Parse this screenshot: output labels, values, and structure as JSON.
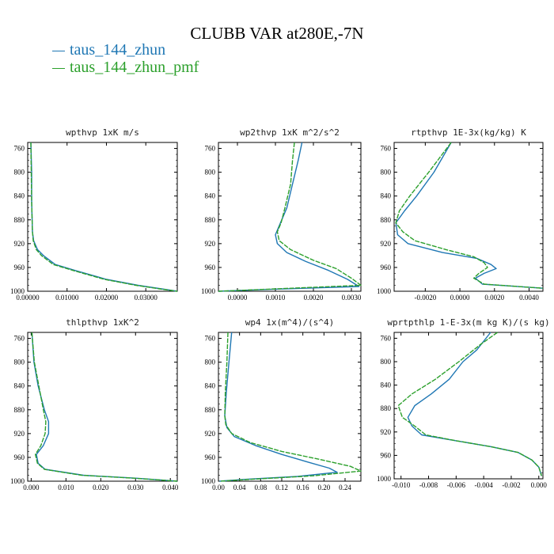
{
  "title": "CLUBB VAR at280E,-7N",
  "legend": [
    {
      "name": "taus_144_zhun",
      "color": "#1f77b4"
    },
    {
      "name": "taus_144_zhun_pmf",
      "color": "#2ca02c"
    }
  ],
  "chart_data": [
    {
      "type": "line",
      "title": "wpthvp  1xK m/s",
      "xlim": [
        0,
        0.038
      ],
      "ylim": [
        1000,
        750
      ],
      "xticks": [
        0,
        0.01,
        0.02,
        0.03
      ],
      "xtick_labels": [
        "0.00000",
        "0.01000",
        "0.02000",
        "0.03000"
      ],
      "yticks": [
        760,
        800,
        840,
        880,
        920,
        960,
        1000
      ],
      "series": [
        {
          "name": "taus_144_zhun",
          "points": [
            [
              0.0008,
              750
            ],
            [
              0.001,
              800
            ],
            [
              0.001,
              850
            ],
            [
              0.0012,
              900
            ],
            [
              0.0015,
              915
            ],
            [
              0.0025,
              930
            ],
            [
              0.004,
              940
            ],
            [
              0.007,
              955
            ],
            [
              0.012,
              965
            ],
            [
              0.02,
              980
            ],
            [
              0.028,
              990
            ],
            [
              0.034,
              996
            ],
            [
              0.038,
              1000
            ]
          ]
        },
        {
          "name": "taus_144_zhun_pmf",
          "points": [
            [
              0.0008,
              750
            ],
            [
              0.0009,
              800
            ],
            [
              0.001,
              850
            ],
            [
              0.0012,
              900
            ],
            [
              0.0014,
              915
            ],
            [
              0.0022,
              930
            ],
            [
              0.0035,
              940
            ],
            [
              0.0065,
              955
            ],
            [
              0.0115,
              965
            ],
            [
              0.0195,
              980
            ],
            [
              0.0275,
              990
            ],
            [
              0.0335,
              996
            ],
            [
              0.038,
              1000
            ]
          ]
        }
      ]
    },
    {
      "type": "line",
      "title": "wp2thvp  1xK m^2/s^2",
      "xlim": [
        -0.0005,
        0.00325
      ],
      "ylim": [
        1000,
        750
      ],
      "xticks": [
        0,
        0.001,
        0.002,
        0.003
      ],
      "xtick_labels": [
        "0.0000",
        "0.0010",
        "0.0020",
        "0.0030"
      ],
      "yticks": [
        760,
        800,
        840,
        880,
        920,
        960,
        1000
      ],
      "series": [
        {
          "name": "taus_144_zhun",
          "points": [
            [
              0.0017,
              750
            ],
            [
              0.0016,
              780
            ],
            [
              0.00145,
              820
            ],
            [
              0.0013,
              860
            ],
            [
              0.0011,
              890
            ],
            [
              0.001,
              905
            ],
            [
              0.00105,
              920
            ],
            [
              0.0013,
              935
            ],
            [
              0.0018,
              950
            ],
            [
              0.0024,
              965
            ],
            [
              0.0029,
              980
            ],
            [
              0.0032,
              992
            ],
            [
              0.0008,
              997
            ],
            [
              -0.0005,
              1000
            ]
          ]
        },
        {
          "name": "taus_144_zhun_pmf",
          "points": [
            [
              0.0015,
              750
            ],
            [
              0.00145,
              780
            ],
            [
              0.0014,
              820
            ],
            [
              0.00125,
              860
            ],
            [
              0.00115,
              885
            ],
            [
              0.00105,
              900
            ],
            [
              0.0011,
              915
            ],
            [
              0.0014,
              930
            ],
            [
              0.002,
              948
            ],
            [
              0.0026,
              962
            ],
            [
              0.003,
              978
            ],
            [
              0.00325,
              990
            ],
            [
              0.001,
              996
            ],
            [
              -0.0005,
              1000
            ]
          ]
        }
      ]
    },
    {
      "type": "line",
      "title": "rtpthvp  1E-3x(kg/kg) K",
      "xlim": [
        -0.0038,
        0.0048
      ],
      "ylim": [
        1000,
        750
      ],
      "xticks": [
        -0.002,
        0,
        0.002,
        0.004
      ],
      "xtick_labels": [
        "-0.0020",
        "0.0000",
        "0.0020",
        "0.0040"
      ],
      "yticks": [
        760,
        800,
        840,
        880,
        920,
        960,
        1000
      ],
      "series": [
        {
          "name": "taus_144_zhun",
          "points": [
            [
              -0.0005,
              750
            ],
            [
              -0.0015,
              800
            ],
            [
              -0.0025,
              840
            ],
            [
              -0.0032,
              865
            ],
            [
              -0.0037,
              885
            ],
            [
              -0.0036,
              905
            ],
            [
              -0.003,
              920
            ],
            [
              -0.001,
              935
            ],
            [
              0.001,
              945
            ],
            [
              0.0018,
              955
            ],
            [
              0.0021,
              962
            ],
            [
              0.0014,
              970
            ],
            [
              0.0009,
              978
            ],
            [
              0.0013,
              988
            ],
            [
              0.0048,
              995
            ]
          ]
        },
        {
          "name": "taus_144_zhun_pmf",
          "points": [
            [
              -0.0005,
              750
            ],
            [
              -0.0018,
              800
            ],
            [
              -0.0029,
              840
            ],
            [
              -0.0035,
              865
            ],
            [
              -0.0037,
              885
            ],
            [
              -0.0033,
              900
            ],
            [
              -0.0026,
              915
            ],
            [
              -0.0008,
              930
            ],
            [
              0.0008,
              942
            ],
            [
              0.0014,
              952
            ],
            [
              0.0016,
              960
            ],
            [
              0.0011,
              970
            ],
            [
              0.0008,
              978
            ],
            [
              0.0014,
              988
            ],
            [
              0.0048,
              995
            ]
          ]
        }
      ]
    },
    {
      "type": "line",
      "title": "thlpthvp  1xK^2",
      "xlim": [
        -0.001,
        0.042
      ],
      "ylim": [
        1000,
        750
      ],
      "xticks": [
        0,
        0.01,
        0.02,
        0.03,
        0.04
      ],
      "xtick_labels": [
        "0.000",
        "0.010",
        "0.020",
        "0.030",
        "0.040"
      ],
      "yticks": [
        760,
        800,
        840,
        880,
        920,
        960,
        1000
      ],
      "series": [
        {
          "name": "taus_144_zhun",
          "points": [
            [
              0.0002,
              750
            ],
            [
              0.0008,
              800
            ],
            [
              0.002,
              840
            ],
            [
              0.0038,
              880
            ],
            [
              0.005,
              900
            ],
            [
              0.005,
              920
            ],
            [
              0.0035,
              940
            ],
            [
              0.0015,
              955
            ],
            [
              0.002,
              970
            ],
            [
              0.004,
              980
            ],
            [
              0.015,
              990
            ],
            [
              0.03,
              995
            ],
            [
              0.042,
              1000
            ]
          ]
        },
        {
          "name": "taus_144_zhun_pmf",
          "points": [
            [
              0.0002,
              750
            ],
            [
              0.0009,
              800
            ],
            [
              0.0022,
              840
            ],
            [
              0.0035,
              880
            ],
            [
              0.0042,
              900
            ],
            [
              0.004,
              920
            ],
            [
              0.0028,
              940
            ],
            [
              0.0012,
              955
            ],
            [
              0.0018,
              970
            ],
            [
              0.0038,
              980
            ],
            [
              0.0145,
              990
            ],
            [
              0.0295,
              995
            ],
            [
              0.042,
              1000
            ]
          ]
        }
      ]
    },
    {
      "type": "line",
      "title": "wp4  1x(m^4)/(s^4)",
      "xlim": [
        0,
        0.27
      ],
      "ylim": [
        1000,
        750
      ],
      "xticks": [
        0,
        0.04,
        0.08,
        0.12,
        0.16,
        0.2,
        0.24
      ],
      "xtick_labels": [
        "0.00",
        "0.04",
        "0.08",
        "0.12",
        "0.16",
        "0.20",
        "0.24"
      ],
      "yticks": [
        760,
        800,
        840,
        880,
        920,
        960,
        1000
      ],
      "series": [
        {
          "name": "taus_144_zhun",
          "points": [
            [
              0.025,
              750
            ],
            [
              0.02,
              800
            ],
            [
              0.015,
              850
            ],
            [
              0.012,
              890
            ],
            [
              0.016,
              910
            ],
            [
              0.03,
              925
            ],
            [
              0.07,
              940
            ],
            [
              0.12,
              955
            ],
            [
              0.17,
              968
            ],
            [
              0.21,
              978
            ],
            [
              0.225,
              985
            ],
            [
              0.15,
              992
            ],
            [
              0.05,
              997
            ],
            [
              0.002,
              1000
            ]
          ]
        },
        {
          "name": "taus_144_zhun_pmf",
          "points": [
            [
              0.018,
              750
            ],
            [
              0.016,
              800
            ],
            [
              0.013,
              850
            ],
            [
              0.012,
              890
            ],
            [
              0.014,
              905
            ],
            [
              0.025,
              920
            ],
            [
              0.06,
              935
            ],
            [
              0.12,
              950
            ],
            [
              0.19,
              963
            ],
            [
              0.25,
              975
            ],
            [
              0.27,
              983
            ],
            [
              0.18,
              991
            ],
            [
              0.06,
              997
            ],
            [
              0.002,
              1000
            ]
          ]
        }
      ]
    },
    {
      "type": "line",
      "title": "wprtpthlp  1-E-3x(m kg K)/(s kg)",
      "xlim": [
        -0.0105,
        0.0003
      ],
      "ylim": [
        1000,
        750
      ],
      "xticks": [
        -0.01,
        -0.008,
        -0.006,
        -0.004,
        -0.002,
        0
      ],
      "xtick_labels": [
        "-0.010",
        "-0.008",
        "-0.006",
        "-0.004",
        "-0.002",
        "0.000"
      ],
      "yticks": [
        760,
        800,
        840,
        880,
        920,
        960,
        1000
      ],
      "series": [
        {
          "name": "taus_144_zhun",
          "points": [
            [
              -0.0035,
              750
            ],
            [
              -0.0045,
              780
            ],
            [
              -0.0055,
              800
            ],
            [
              -0.0065,
              830
            ],
            [
              -0.0078,
              855
            ],
            [
              -0.009,
              875
            ],
            [
              -0.0095,
              895
            ],
            [
              -0.0092,
              910
            ],
            [
              -0.0085,
              925
            ],
            [
              -0.006,
              935
            ],
            [
              -0.0035,
              945
            ],
            [
              -0.0015,
              955
            ],
            [
              -0.0005,
              968
            ],
            [
              0.0,
              980
            ],
            [
              0.0002,
              995
            ]
          ]
        },
        {
          "name": "taus_144_zhun_pmf",
          "points": [
            [
              -0.003,
              750
            ],
            [
              -0.0042,
              770
            ],
            [
              -0.0058,
              800
            ],
            [
              -0.0075,
              830
            ],
            [
              -0.0092,
              855
            ],
            [
              -0.0102,
              875
            ],
            [
              -0.0099,
              895
            ],
            [
              -0.009,
              910
            ],
            [
              -0.0082,
              925
            ],
            [
              -0.006,
              935
            ],
            [
              -0.0035,
              945
            ],
            [
              -0.0015,
              955
            ],
            [
              -0.0005,
              968
            ],
            [
              0.0,
              980
            ],
            [
              0.0002,
              995
            ]
          ]
        }
      ]
    }
  ]
}
